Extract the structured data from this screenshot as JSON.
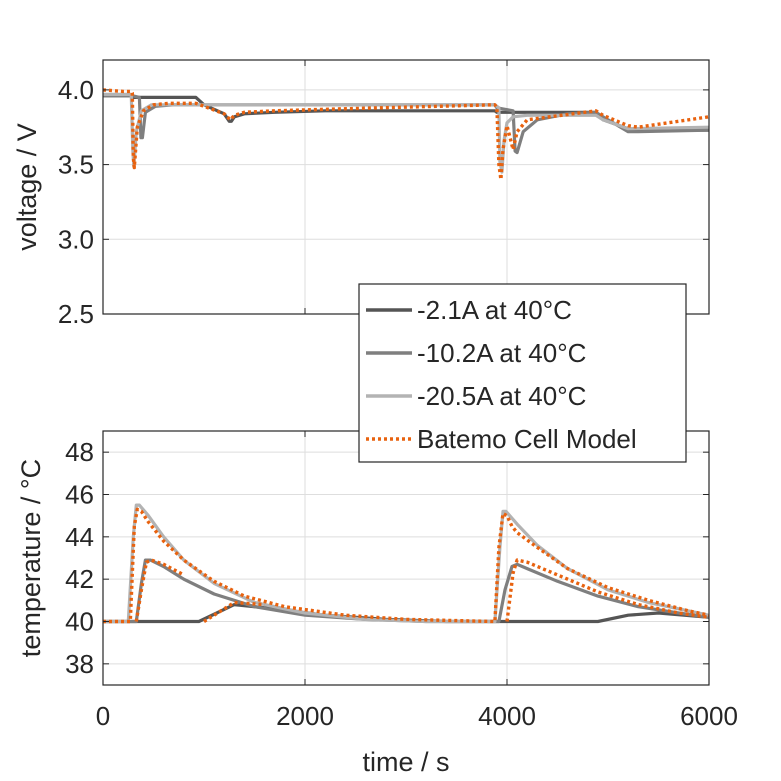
{
  "chart_data": [
    {
      "type": "line",
      "id": "voltage",
      "xlabel": "",
      "ylabel": "voltage / V",
      "xlim": [
        0,
        6000
      ],
      "ylim": [
        2.5,
        4.2
      ],
      "xticks": [],
      "yticks": [
        2.5,
        3.0,
        3.5,
        4.0
      ],
      "ytick_labels": [
        "2.5",
        "3.0",
        "3.5",
        "4.0"
      ],
      "grid": true,
      "series": [
        {
          "name": "-2.1A at 40°C",
          "color": "#555555",
          "style": "solid",
          "x": [
            0,
            290,
            300,
            920,
            1000,
            1200,
            1250,
            1270,
            1300,
            1400,
            1700,
            2200,
            3000,
            3880,
            3900,
            4880,
            4950,
            5200,
            5300,
            6000
          ],
          "y": [
            3.96,
            3.96,
            3.95,
            3.95,
            3.9,
            3.84,
            3.79,
            3.79,
            3.82,
            3.84,
            3.85,
            3.86,
            3.86,
            3.86,
            3.85,
            3.85,
            3.8,
            3.74,
            3.73,
            3.73
          ]
        },
        {
          "name": "-10.2A at 40°C",
          "color": "#7f7f7f",
          "style": "solid",
          "x": [
            0,
            290,
            300,
            360,
            375,
            390,
            420,
            520,
            700,
            900,
            2000,
            3880,
            3900,
            3980,
            4060,
            4080,
            4100,
            4160,
            4300,
            4600,
            4880,
            5000,
            5200,
            5300,
            6000
          ],
          "y": [
            3.96,
            3.96,
            3.96,
            3.95,
            3.68,
            3.68,
            3.85,
            3.89,
            3.9,
            3.9,
            3.9,
            3.9,
            3.88,
            3.87,
            3.86,
            3.59,
            3.58,
            3.72,
            3.8,
            3.84,
            3.85,
            3.8,
            3.72,
            3.72,
            3.73
          ]
        },
        {
          "name": "-20.5A at 40°C",
          "color": "#b3b3b3",
          "style": "solid",
          "x": [
            0,
            270,
            280,
            295,
            305,
            330,
            380,
            480,
            650,
            2000,
            3880,
            3920,
            3930,
            3950,
            3970,
            4000,
            4060,
            4200,
            4880,
            4950,
            5200,
            6000
          ],
          "y": [
            3.97,
            3.97,
            3.96,
            3.6,
            3.49,
            3.72,
            3.86,
            3.9,
            3.9,
            3.9,
            3.9,
            3.88,
            3.52,
            3.45,
            3.66,
            3.78,
            3.82,
            3.83,
            3.83,
            3.8,
            3.74,
            3.75
          ]
        },
        {
          "name": "Batemo Cell Model",
          "color": "#e8620f",
          "style": "dotted",
          "x": [
            0,
            200,
            280,
            290,
            300,
            310,
            340,
            400,
            500,
            650,
            920,
            1000,
            1200,
            1260,
            1300,
            1400,
            1700,
            2200,
            3880,
            3900,
            3920,
            3940,
            3960,
            4000,
            4060,
            4100,
            4200,
            4880,
            4950,
            5200,
            5300,
            6000
          ],
          "y": [
            4.0,
            3.99,
            3.99,
            3.98,
            3.55,
            3.48,
            3.75,
            3.86,
            3.9,
            3.91,
            3.91,
            3.89,
            3.84,
            3.8,
            3.83,
            3.85,
            3.86,
            3.87,
            3.9,
            3.88,
            3.5,
            3.4,
            3.6,
            3.76,
            3.6,
            3.72,
            3.8,
            3.86,
            3.83,
            3.76,
            3.75,
            3.82
          ]
        }
      ]
    },
    {
      "type": "line",
      "id": "temperature",
      "xlabel": "time / s",
      "ylabel": "temperature / °C",
      "xlim": [
        0,
        6000
      ],
      "ylim": [
        37,
        49
      ],
      "xticks": [
        0,
        2000,
        4000,
        6000
      ],
      "xtick_labels": [
        "0",
        "2000",
        "4000",
        "6000"
      ],
      "yticks": [
        38,
        40,
        42,
        44,
        46,
        48
      ],
      "ytick_labels": [
        "38",
        "40",
        "42",
        "44",
        "46",
        "48"
      ],
      "grid": true,
      "series": [
        {
          "name": "-2.1A at 40°C",
          "color": "#555555",
          "style": "solid",
          "x": [
            0,
            950,
            1300,
            1700,
            2200,
            2800,
            3400,
            4900,
            5200,
            5500,
            6000
          ],
          "y": [
            40.0,
            40.0,
            40.8,
            40.6,
            40.3,
            40.1,
            40.0,
            40.0,
            40.3,
            40.4,
            40.2
          ]
        },
        {
          "name": "-10.2A at 40°C",
          "color": "#7f7f7f",
          "style": "solid",
          "x": [
            0,
            330,
            380,
            420,
            470,
            600,
            800,
            1100,
            1500,
            2000,
            2600,
            3200,
            3920,
            3980,
            4050,
            4100,
            4200,
            4500,
            4900,
            5300,
            5700,
            6000
          ],
          "y": [
            40.0,
            40.0,
            41.8,
            42.9,
            42.9,
            42.6,
            42.0,
            41.3,
            40.7,
            40.3,
            40.1,
            40.0,
            40.0,
            41.5,
            42.6,
            42.7,
            42.5,
            41.9,
            41.2,
            40.7,
            40.4,
            40.2
          ]
        },
        {
          "name": "-20.5A at 40°C",
          "color": "#b3b3b3",
          "style": "solid",
          "x": [
            0,
            250,
            300,
            330,
            360,
            450,
            600,
            800,
            1100,
            1500,
            2000,
            2600,
            3200,
            3880,
            3930,
            3960,
            3990,
            4100,
            4300,
            4600,
            5000,
            5400,
            5800,
            6000
          ],
          "y": [
            40.0,
            40.0,
            44.0,
            45.5,
            45.5,
            45.0,
            44.0,
            42.9,
            41.8,
            40.9,
            40.4,
            40.1,
            40.0,
            40.0,
            43.5,
            45.2,
            45.2,
            44.6,
            43.6,
            42.5,
            41.5,
            40.9,
            40.5,
            40.3
          ]
        },
        {
          "name": "Batemo Cell Model",
          "color": "#e8620f",
          "style": "dotted",
          "x": [
            0,
            270,
            310,
            340,
            380,
            450,
            600,
            800,
            950,
            1100,
            1400,
            1800,
            2400,
            3000,
            3880,
            3920,
            3960,
            4000,
            4050,
            4100,
            4300,
            4600,
            5000,
            5400,
            5800,
            6000
          ],
          "y": [
            40.0,
            40.0,
            44.5,
            45.3,
            45.2,
            44.7,
            43.8,
            42.9,
            42.4,
            41.9,
            41.2,
            40.7,
            40.3,
            40.1,
            40.0,
            43.5,
            45.1,
            45.0,
            44.5,
            44.2,
            43.5,
            42.5,
            41.6,
            41.0,
            40.5,
            40.3
          ]
        },
        {
          "name": "Batemo Cell Model",
          "color": "#e8620f",
          "style": "dotted",
          "x": [
            330,
            380,
            430,
            480,
            600,
            800
          ],
          "y": [
            40.0,
            41.5,
            42.8,
            42.9,
            42.7,
            42.2
          ]
        },
        {
          "name": "Batemo Cell Model",
          "color": "#e8620f",
          "style": "dotted",
          "x": [
            4000,
            4060,
            4100,
            4200,
            4500,
            4900,
            5300,
            5700,
            6000
          ],
          "y": [
            40.0,
            42.3,
            42.9,
            42.8,
            42.2,
            41.4,
            40.8,
            40.4,
            40.2
          ]
        },
        {
          "name": "Batemo Cell Model",
          "color": "#e8620f",
          "style": "dotted",
          "x": [
            1000,
            1300,
            1600
          ],
          "y": [
            40.0,
            40.9,
            40.8
          ]
        }
      ]
    }
  ],
  "legend": {
    "placement": "center-right",
    "entries": [
      {
        "label": "-2.1A at 40°C",
        "color": "#555555",
        "style": "solid"
      },
      {
        "label": "-10.2A at 40°C",
        "color": "#7f7f7f",
        "style": "solid"
      },
      {
        "label": "-20.5A at 40°C",
        "color": "#b3b3b3",
        "style": "solid"
      },
      {
        "label": "Batemo Cell Model",
        "color": "#e8620f",
        "style": "dotted"
      }
    ]
  }
}
